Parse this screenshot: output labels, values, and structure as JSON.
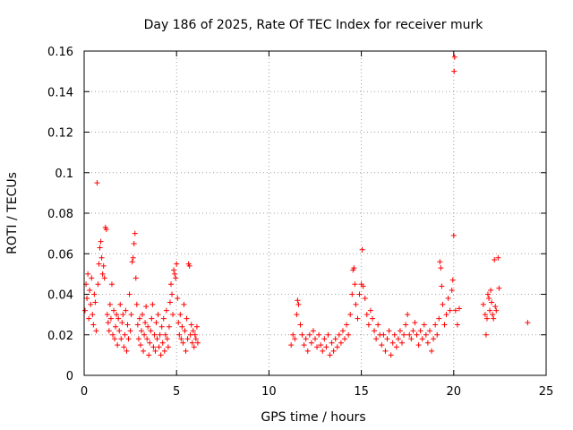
{
  "chart_data": {
    "type": "scatter",
    "title": "Day 186 of 2025, Rate Of TEC Index for receiver murk",
    "xlabel": "GPS time / hours",
    "ylabel": "ROTI / TECUs",
    "xlim": [
      0,
      25
    ],
    "ylim": [
      0,
      0.16
    ],
    "xticks": [
      "0",
      "5",
      "10",
      "15",
      "20",
      "25"
    ],
    "yticks": [
      "0",
      "0.02",
      "0.04",
      "0.06",
      "0.08",
      "0.1",
      "0.12",
      "0.14",
      "0.16"
    ],
    "grid": true,
    "marker": "plus",
    "color": "#ff0000",
    "points": [
      [
        0.05,
        0.032
      ],
      [
        0.1,
        0.045
      ],
      [
        0.15,
        0.038
      ],
      [
        0.2,
        0.05
      ],
      [
        0.25,
        0.028
      ],
      [
        0.3,
        0.042
      ],
      [
        0.35,
        0.035
      ],
      [
        0.4,
        0.048
      ],
      [
        0.45,
        0.03
      ],
      [
        0.5,
        0.025
      ],
      [
        0.55,
        0.04
      ],
      [
        0.6,
        0.036
      ],
      [
        0.65,
        0.022
      ],
      [
        0.7,
        0.095
      ],
      [
        0.75,
        0.045
      ],
      [
        0.8,
        0.055
      ],
      [
        0.85,
        0.063
      ],
      [
        0.9,
        0.066
      ],
      [
        0.95,
        0.058
      ],
      [
        1.0,
        0.05
      ],
      [
        1.05,
        0.054
      ],
      [
        1.1,
        0.048
      ],
      [
        1.15,
        0.073
      ],
      [
        1.2,
        0.072
      ],
      [
        1.25,
        0.03
      ],
      [
        1.3,
        0.026
      ],
      [
        1.35,
        0.022
      ],
      [
        1.4,
        0.035
      ],
      [
        1.45,
        0.028
      ],
      [
        1.5,
        0.045
      ],
      [
        1.55,
        0.02
      ],
      [
        1.6,
        0.032
      ],
      [
        1.65,
        0.018
      ],
      [
        1.7,
        0.024
      ],
      [
        1.75,
        0.03
      ],
      [
        1.8,
        0.015
      ],
      [
        1.85,
        0.028
      ],
      [
        1.9,
        0.022
      ],
      [
        1.95,
        0.035
      ],
      [
        2.0,
        0.018
      ],
      [
        2.05,
        0.026
      ],
      [
        2.1,
        0.03
      ],
      [
        2.15,
        0.014
      ],
      [
        2.2,
        0.02
      ],
      [
        2.25,
        0.032
      ],
      [
        2.3,
        0.012
      ],
      [
        2.35,
        0.025
      ],
      [
        2.4,
        0.018
      ],
      [
        2.45,
        0.04
      ],
      [
        2.5,
        0.022
      ],
      [
        2.55,
        0.03
      ],
      [
        2.6,
        0.056
      ],
      [
        2.65,
        0.058
      ],
      [
        2.7,
        0.065
      ],
      [
        2.75,
        0.07
      ],
      [
        2.8,
        0.048
      ],
      [
        2.85,
        0.035
      ],
      [
        2.9,
        0.025
      ],
      [
        2.95,
        0.018
      ],
      [
        3.0,
        0.028
      ],
      [
        3.05,
        0.015
      ],
      [
        3.1,
        0.022
      ],
      [
        3.15,
        0.03
      ],
      [
        3.2,
        0.012
      ],
      [
        3.25,
        0.02
      ],
      [
        3.3,
        0.026
      ],
      [
        3.35,
        0.034
      ],
      [
        3.4,
        0.018
      ],
      [
        3.45,
        0.024
      ],
      [
        3.5,
        0.01
      ],
      [
        3.55,
        0.016
      ],
      [
        3.6,
        0.022
      ],
      [
        3.65,
        0.028
      ],
      [
        3.7,
        0.035
      ],
      [
        3.75,
        0.014
      ],
      [
        3.8,
        0.02
      ],
      [
        3.85,
        0.012
      ],
      [
        3.9,
        0.026
      ],
      [
        3.95,
        0.018
      ],
      [
        4.0,
        0.03
      ],
      [
        4.05,
        0.014
      ],
      [
        4.1,
        0.02
      ],
      [
        4.15,
        0.01
      ],
      [
        4.2,
        0.024
      ],
      [
        4.25,
        0.016
      ],
      [
        4.3,
        0.028
      ],
      [
        4.35,
        0.012
      ],
      [
        4.4,
        0.02
      ],
      [
        4.45,
        0.032
      ],
      [
        4.5,
        0.018
      ],
      [
        4.55,
        0.014
      ],
      [
        4.6,
        0.024
      ],
      [
        4.65,
        0.036
      ],
      [
        4.7,
        0.045
      ],
      [
        4.75,
        0.04
      ],
      [
        4.8,
        0.03
      ],
      [
        4.85,
        0.052
      ],
      [
        4.9,
        0.05
      ],
      [
        4.95,
        0.048
      ],
      [
        5.0,
        0.055
      ],
      [
        5.05,
        0.038
      ],
      [
        5.1,
        0.026
      ],
      [
        5.15,
        0.02
      ],
      [
        5.2,
        0.03
      ],
      [
        5.25,
        0.018
      ],
      [
        5.3,
        0.024
      ],
      [
        5.35,
        0.016
      ],
      [
        5.4,
        0.035
      ],
      [
        5.45,
        0.022
      ],
      [
        5.5,
        0.012
      ],
      [
        5.55,
        0.028
      ],
      [
        5.6,
        0.018
      ],
      [
        5.65,
        0.055
      ],
      [
        5.7,
        0.054
      ],
      [
        5.75,
        0.02
      ],
      [
        5.8,
        0.025
      ],
      [
        5.85,
        0.016
      ],
      [
        5.9,
        0.022
      ],
      [
        5.95,
        0.014
      ],
      [
        6.0,
        0.02
      ],
      [
        6.05,
        0.018
      ],
      [
        6.1,
        0.024
      ],
      [
        6.15,
        0.016
      ],
      [
        11.2,
        0.015
      ],
      [
        11.3,
        0.02
      ],
      [
        11.4,
        0.018
      ],
      [
        11.5,
        0.03
      ],
      [
        11.55,
        0.037
      ],
      [
        11.6,
        0.035
      ],
      [
        11.7,
        0.025
      ],
      [
        11.8,
        0.02
      ],
      [
        11.9,
        0.015
      ],
      [
        12.0,
        0.018
      ],
      [
        12.1,
        0.012
      ],
      [
        12.2,
        0.02
      ],
      [
        12.3,
        0.016
      ],
      [
        12.4,
        0.022
      ],
      [
        12.5,
        0.018
      ],
      [
        12.6,
        0.014
      ],
      [
        12.7,
        0.02
      ],
      [
        12.8,
        0.015
      ],
      [
        12.9,
        0.012
      ],
      [
        13.0,
        0.018
      ],
      [
        13.1,
        0.014
      ],
      [
        13.2,
        0.02
      ],
      [
        13.3,
        0.01
      ],
      [
        13.4,
        0.016
      ],
      [
        13.5,
        0.012
      ],
      [
        13.6,
        0.018
      ],
      [
        13.7,
        0.014
      ],
      [
        13.8,
        0.02
      ],
      [
        13.9,
        0.016
      ],
      [
        14.0,
        0.022
      ],
      [
        14.1,
        0.018
      ],
      [
        14.2,
        0.025
      ],
      [
        14.3,
        0.02
      ],
      [
        14.4,
        0.03
      ],
      [
        14.5,
        0.04
      ],
      [
        14.55,
        0.052
      ],
      [
        14.6,
        0.053
      ],
      [
        14.65,
        0.045
      ],
      [
        14.7,
        0.035
      ],
      [
        14.8,
        0.028
      ],
      [
        14.9,
        0.04
      ],
      [
        15.0,
        0.045
      ],
      [
        15.05,
        0.062
      ],
      [
        15.1,
        0.044
      ],
      [
        15.2,
        0.038
      ],
      [
        15.3,
        0.03
      ],
      [
        15.4,
        0.025
      ],
      [
        15.5,
        0.032
      ],
      [
        15.6,
        0.028
      ],
      [
        15.7,
        0.022
      ],
      [
        15.8,
        0.018
      ],
      [
        15.9,
        0.025
      ],
      [
        16.0,
        0.02
      ],
      [
        16.1,
        0.015
      ],
      [
        16.2,
        0.02
      ],
      [
        16.3,
        0.012
      ],
      [
        16.4,
        0.018
      ],
      [
        16.5,
        0.022
      ],
      [
        16.6,
        0.01
      ],
      [
        16.7,
        0.016
      ],
      [
        16.8,
        0.02
      ],
      [
        16.9,
        0.014
      ],
      [
        17.0,
        0.018
      ],
      [
        17.1,
        0.022
      ],
      [
        17.2,
        0.016
      ],
      [
        17.3,
        0.02
      ],
      [
        17.4,
        0.025
      ],
      [
        17.5,
        0.03
      ],
      [
        17.6,
        0.02
      ],
      [
        17.7,
        0.018
      ],
      [
        17.8,
        0.022
      ],
      [
        17.9,
        0.026
      ],
      [
        18.0,
        0.02
      ],
      [
        18.1,
        0.015
      ],
      [
        18.2,
        0.022
      ],
      [
        18.3,
        0.018
      ],
      [
        18.4,
        0.025
      ],
      [
        18.5,
        0.02
      ],
      [
        18.6,
        0.016
      ],
      [
        18.7,
        0.022
      ],
      [
        18.8,
        0.012
      ],
      [
        18.9,
        0.018
      ],
      [
        19.0,
        0.025
      ],
      [
        19.1,
        0.02
      ],
      [
        19.2,
        0.028
      ],
      [
        19.25,
        0.056
      ],
      [
        19.3,
        0.053
      ],
      [
        19.35,
        0.044
      ],
      [
        19.4,
        0.035
      ],
      [
        19.5,
        0.025
      ],
      [
        19.6,
        0.03
      ],
      [
        19.7,
        0.038
      ],
      [
        19.8,
        0.032
      ],
      [
        19.9,
        0.042
      ],
      [
        19.95,
        0.047
      ],
      [
        20.0,
        0.069
      ],
      [
        20.02,
        0.15
      ],
      [
        20.05,
        0.157
      ],
      [
        20.1,
        0.032
      ],
      [
        20.2,
        0.025
      ],
      [
        20.3,
        0.033
      ],
      [
        21.6,
        0.035
      ],
      [
        21.7,
        0.03
      ],
      [
        21.75,
        0.02
      ],
      [
        21.8,
        0.028
      ],
      [
        21.85,
        0.04
      ],
      [
        21.9,
        0.038
      ],
      [
        21.95,
        0.032
      ],
      [
        22.0,
        0.042
      ],
      [
        22.05,
        0.036
      ],
      [
        22.1,
        0.03
      ],
      [
        22.15,
        0.028
      ],
      [
        22.2,
        0.057
      ],
      [
        22.25,
        0.034
      ],
      [
        22.3,
        0.032
      ],
      [
        22.4,
        0.058
      ],
      [
        22.45,
        0.043
      ],
      [
        24.0,
        0.026
      ]
    ]
  }
}
